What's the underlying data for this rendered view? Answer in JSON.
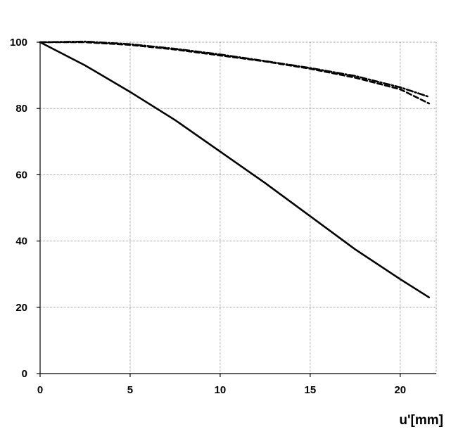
{
  "chart_data": {
    "type": "line",
    "title": "",
    "xlabel": "u'[mm]",
    "ylabel": "",
    "xlim": [
      0,
      22
    ],
    "ylim": [
      0,
      100
    ],
    "x_ticks": [
      0,
      5,
      10,
      15,
      20
    ],
    "y_ticks": [
      0,
      20,
      40,
      60,
      80,
      100
    ],
    "grid": true,
    "legend": "none",
    "colors": {
      "grid": "#9a9a9a",
      "axis": "#000000",
      "line": "#000000"
    },
    "series": [
      {
        "style": "solid",
        "x": [
          0,
          2.5,
          5,
          7.5,
          10,
          12.5,
          15,
          17.5,
          20,
          21.6
        ],
        "y": [
          100,
          93,
          85,
          76.5,
          67,
          57.5,
          47.5,
          37.5,
          28.5,
          23
        ]
      },
      {
        "style": "dashed",
        "x": [
          0,
          2.5,
          5,
          7.5,
          10,
          12.5,
          15,
          17.5,
          20,
          21.6
        ],
        "y": [
          100,
          100,
          99.2,
          97.8,
          96,
          94.2,
          92,
          89.3,
          85.8,
          81.5
        ]
      },
      {
        "style": "dash-dot",
        "x": [
          0,
          2.5,
          5,
          7.5,
          10,
          12.5,
          15,
          17.5,
          20,
          21.6
        ],
        "y": [
          100,
          100.2,
          99.4,
          98,
          96.3,
          94.3,
          92.2,
          89.8,
          86.4,
          83.5
        ]
      }
    ]
  }
}
